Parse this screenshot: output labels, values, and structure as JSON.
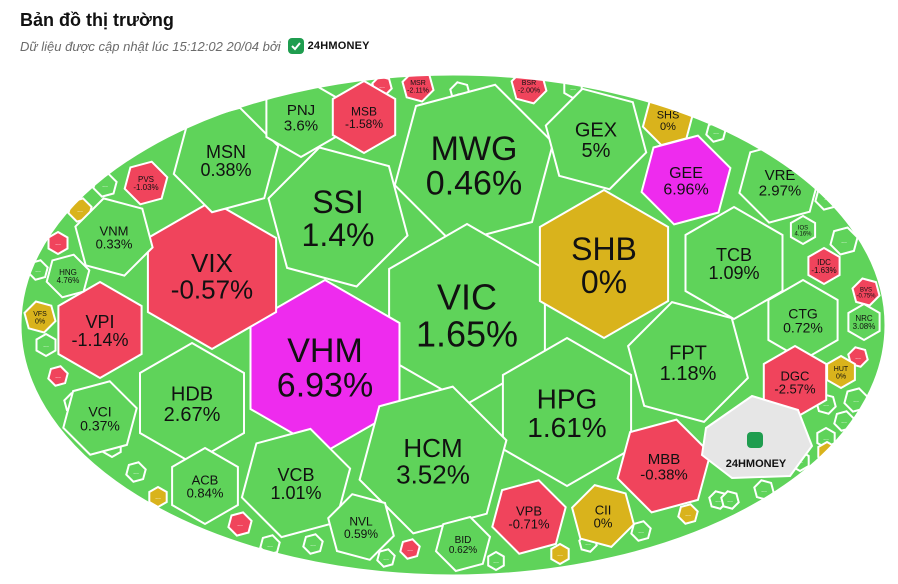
{
  "header": {
    "title": "Bản đồ thị trường",
    "updated_text": "Dữ liệu được cập nhật lúc 15:12:02 20/04 bởi",
    "brand": "24HMONEY"
  },
  "colors": {
    "up": "#5fd35a",
    "down": "#f0445c",
    "flat": "#d9b31c",
    "ceiling": "#ee2bee",
    "logo_cell": "#e6e6e6",
    "border": "#ffffff",
    "brand_green": "#1f9d4f"
  },
  "chart_data": {
    "type": "treemap",
    "title": "Bản đồ thị trường",
    "cells": [
      {
        "ticker": "MWG",
        "change": "0.46%",
        "status": "up"
      },
      {
        "ticker": "SSI",
        "change": "1.4%",
        "status": "up"
      },
      {
        "ticker": "VIC",
        "change": "1.65%",
        "status": "up"
      },
      {
        "ticker": "VHM",
        "change": "6.93%",
        "status": "ceiling"
      },
      {
        "ticker": "SHB",
        "change": "0%",
        "status": "flat"
      },
      {
        "ticker": "HPG",
        "change": "1.61%",
        "status": "up"
      },
      {
        "ticker": "HCM",
        "change": "3.52%",
        "status": "up"
      },
      {
        "ticker": "VIX",
        "change": "-0.57%",
        "status": "down"
      },
      {
        "ticker": "MSN",
        "change": "0.38%",
        "status": "up"
      },
      {
        "ticker": "GEX",
        "change": "5%",
        "status": "up"
      },
      {
        "ticker": "TCB",
        "change": "1.09%",
        "status": "up"
      },
      {
        "ticker": "FPT",
        "change": "1.18%",
        "status": "up"
      },
      {
        "ticker": "HDB",
        "change": "2.67%",
        "status": "up"
      },
      {
        "ticker": "VCB",
        "change": "1.01%",
        "status": "up"
      },
      {
        "ticker": "VPI",
        "change": "-1.14%",
        "status": "down"
      },
      {
        "ticker": "GEE",
        "change": "6.96%",
        "status": "ceiling"
      },
      {
        "ticker": "VRE",
        "change": "2.97%",
        "status": "up"
      },
      {
        "ticker": "PNJ",
        "change": "3.6%",
        "status": "up"
      },
      {
        "ticker": "MSB",
        "change": "-1.58%",
        "status": "down"
      },
      {
        "ticker": "MBB",
        "change": "-0.38%",
        "status": "down"
      },
      {
        "ticker": "CTG",
        "change": "0.72%",
        "status": "up"
      },
      {
        "ticker": "DGC",
        "change": "-2.57%",
        "status": "down"
      },
      {
        "ticker": "VNM",
        "change": "0.33%",
        "status": "up"
      },
      {
        "ticker": "VCI",
        "change": "0.37%",
        "status": "up"
      },
      {
        "ticker": "ACB",
        "change": "0.84%",
        "status": "up"
      },
      {
        "ticker": "VPB",
        "change": "-0.71%",
        "status": "down"
      },
      {
        "ticker": "CII",
        "change": "0%",
        "status": "flat"
      },
      {
        "ticker": "NVL",
        "change": "0.59%",
        "status": "up"
      },
      {
        "ticker": "BID",
        "change": "0.62%",
        "status": "up"
      },
      {
        "ticker": "SHS",
        "change": "0%",
        "status": "flat"
      },
      {
        "ticker": "PVS",
        "change": "-1.03%",
        "status": "down"
      },
      {
        "ticker": "HNG",
        "change": "4.76%",
        "status": "up"
      },
      {
        "ticker": "VFS",
        "change": "0%",
        "status": "flat"
      },
      {
        "ticker": "MSR",
        "change": "-2.11%",
        "status": "down"
      },
      {
        "ticker": "BSR",
        "change": "-2.00%",
        "status": "down"
      },
      {
        "ticker": "IDC",
        "change": "-1.63%",
        "status": "down"
      },
      {
        "ticker": "IOS",
        "change": "4.16%",
        "status": "up"
      },
      {
        "ticker": "BVS",
        "change": "-0.75%",
        "status": "down"
      },
      {
        "ticker": "NRC",
        "change": "3.08%",
        "status": "up"
      },
      {
        "ticker": "HUT",
        "change": "0%",
        "status": "flat"
      }
    ],
    "minor_cell_label": "...",
    "minor_cells": [
      "up",
      "flat",
      "down",
      "up",
      "up",
      "down",
      "up",
      "up",
      "up",
      "flat",
      "down",
      "up",
      "up",
      "down",
      "up",
      "up",
      "flat",
      "up",
      "up",
      "flat",
      "up",
      "up",
      "up",
      "up",
      "up",
      "up",
      "up",
      "down",
      "up",
      "up",
      "up",
      "up",
      "up",
      "flat",
      "up",
      "up",
      "up",
      "down",
      "up"
    ],
    "legend_cell_label": "24HMONEY"
  }
}
